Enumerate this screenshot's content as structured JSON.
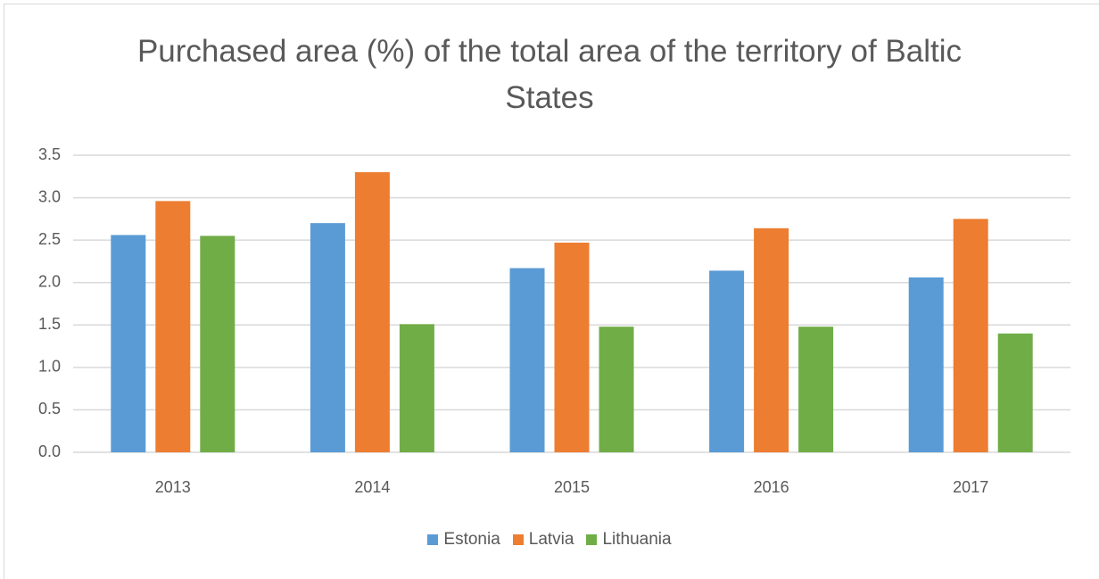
{
  "chart_data": {
    "type": "bar",
    "title": "Purchased area (%) of the total area of the territory of Baltic States",
    "categories": [
      "2013",
      "2014",
      "2015",
      "2016",
      "2017"
    ],
    "series": [
      {
        "name": "Estonia",
        "color": "#5b9bd5",
        "values": [
          2.56,
          2.7,
          2.17,
          2.14,
          2.06
        ]
      },
      {
        "name": "Latvia",
        "color": "#ed7d31",
        "values": [
          2.96,
          3.3,
          2.47,
          2.64,
          2.75
        ]
      },
      {
        "name": "Lithuania",
        "color": "#70ad47",
        "values": [
          2.55,
          1.51,
          1.48,
          1.48,
          1.4
        ]
      }
    ],
    "ylim": [
      0,
      3.5
    ],
    "yticks": [
      {
        "value": 0,
        "label": "0.0"
      },
      0.5,
      {
        "value": 1,
        "label": "1.0"
      },
      1.5,
      {
        "value": 2,
        "label": "2.0"
      },
      2.5,
      {
        "value": 3,
        "label": "3.0"
      },
      3.5
    ],
    "grid": true,
    "legend": "bottom"
  }
}
